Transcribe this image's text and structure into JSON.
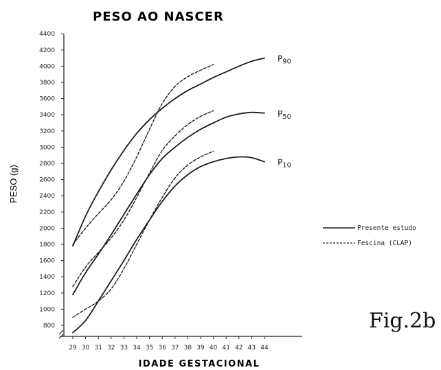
{
  "chart_data": {
    "type": "line",
    "title": "PESO AO NASCER",
    "xlabel": "IDADE GESTACIONAL",
    "ylabel": "PESO (g)",
    "figure_label": "Fig.2b",
    "xlim": [
      29,
      44
    ],
    "ylim": [
      800,
      4400
    ],
    "x_ticks": [
      29,
      30,
      31,
      32,
      33,
      34,
      35,
      36,
      37,
      38,
      39,
      40,
      41,
      42,
      43,
      44
    ],
    "y_ticks": [
      800,
      1000,
      1200,
      1400,
      1600,
      1800,
      2000,
      2200,
      2400,
      2600,
      2800,
      3000,
      3200,
      3400,
      3600,
      3800,
      4000,
      4200,
      4400
    ],
    "y_tick_labels": [
      "800",
      "1000",
      "1200",
      "1400",
      "1600",
      "1800",
      "2000",
      "2200",
      "2400",
      "2600",
      "2800",
      "3000",
      "3200",
      "3400",
      "3600",
      "3800",
      "4000",
      "4200",
      "4400"
    ],
    "legend": [
      {
        "label": "Presente estudo",
        "style": "solid"
      },
      {
        "label": "Fescina (CLAP)",
        "style": "dashed"
      }
    ],
    "series": [
      {
        "legend": "Presente estudo",
        "percentile": "P90",
        "label_main": "P",
        "label_sub": "90",
        "style": "solid",
        "x": [
          29,
          30,
          31,
          32,
          33,
          34,
          35,
          36,
          37,
          38,
          39,
          40,
          41,
          42,
          43,
          44
        ],
        "y": [
          1780,
          2150,
          2450,
          2720,
          2960,
          3170,
          3340,
          3480,
          3600,
          3700,
          3780,
          3860,
          3930,
          4000,
          4060,
          4100
        ]
      },
      {
        "legend": "Presente estudo",
        "percentile": "P50",
        "label_main": "P",
        "label_sub": "50",
        "style": "solid",
        "x": [
          29,
          30,
          31,
          32,
          33,
          34,
          35,
          36,
          37,
          38,
          39,
          40,
          41,
          42,
          43,
          44
        ],
        "y": [
          1180,
          1450,
          1680,
          1920,
          2170,
          2420,
          2660,
          2860,
          3000,
          3120,
          3220,
          3300,
          3370,
          3410,
          3430,
          3420
        ]
      },
      {
        "legend": "Presente estudo",
        "percentile": "P10",
        "label_main": "P",
        "label_sub": "10",
        "style": "solid",
        "x": [
          29,
          30,
          31,
          32,
          33,
          34,
          35,
          36,
          37,
          38,
          39,
          40,
          41,
          42,
          43,
          44
        ],
        "y": [
          710,
          860,
          1100,
          1350,
          1600,
          1860,
          2100,
          2330,
          2520,
          2660,
          2760,
          2820,
          2860,
          2880,
          2870,
          2820
        ]
      },
      {
        "legend": "Fescina (CLAP)",
        "percentile": "P90",
        "style": "dashed",
        "x": [
          29,
          30,
          31,
          32,
          33,
          34,
          35,
          36,
          37,
          38,
          39,
          40
        ],
        "y": [
          1800,
          2000,
          2180,
          2350,
          2580,
          2880,
          3220,
          3540,
          3750,
          3870,
          3950,
          4020
        ]
      },
      {
        "legend": "Fescina (CLAP)",
        "percentile": "P50",
        "style": "dashed",
        "x": [
          29,
          30,
          31,
          32,
          33,
          34,
          35,
          36,
          37,
          38,
          39,
          40
        ],
        "y": [
          1280,
          1520,
          1700,
          1880,
          2100,
          2380,
          2680,
          2960,
          3140,
          3280,
          3380,
          3450
        ]
      },
      {
        "legend": "Fescina (CLAP)",
        "percentile": "P10",
        "style": "dashed",
        "x": [
          29,
          30,
          31,
          32,
          33,
          34,
          35,
          36,
          37,
          38,
          39,
          40
        ],
        "y": [
          900,
          1000,
          1100,
          1250,
          1500,
          1800,
          2100,
          2380,
          2620,
          2780,
          2880,
          2950
        ]
      }
    ]
  }
}
